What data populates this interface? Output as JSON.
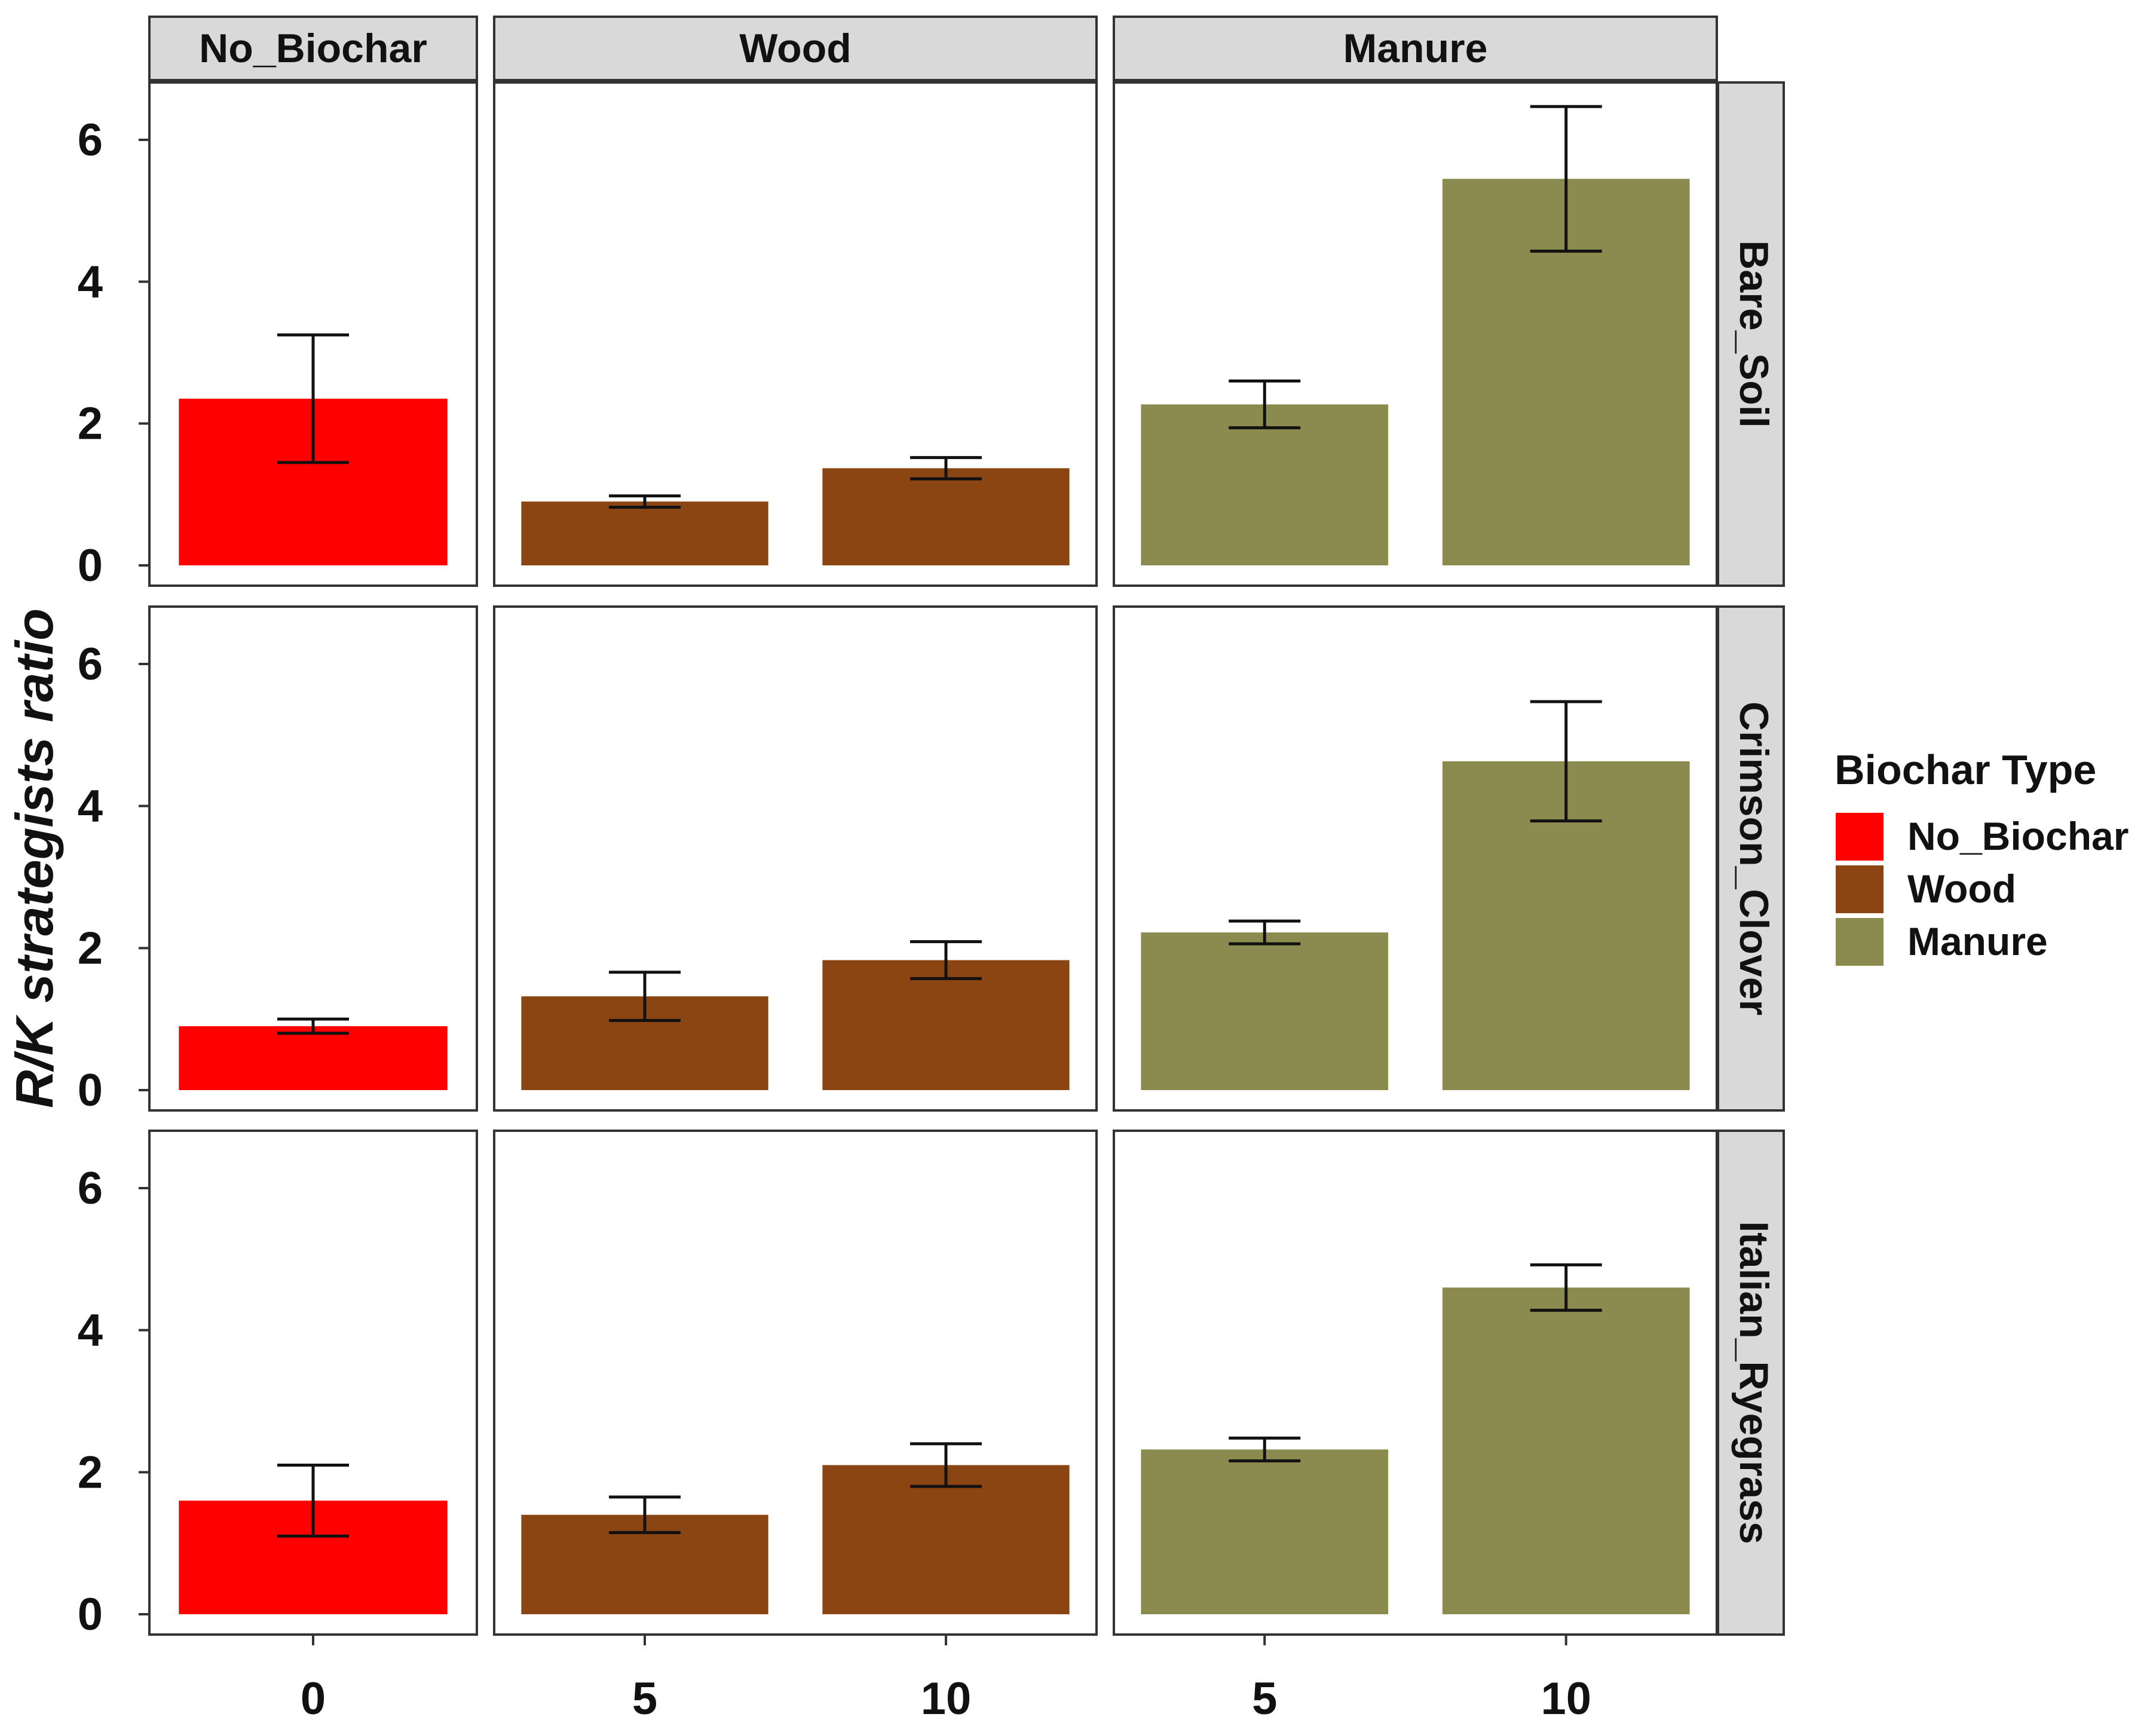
{
  "chart_data": {
    "type": "bar",
    "title": "",
    "ylabel": "R/K strategists ratio",
    "xlabel": "",
    "ylim": [
      0,
      6.6
    ],
    "yticks": [
      0,
      2,
      4,
      6
    ],
    "column_facets": [
      {
        "name": "No_Biochar",
        "categories": [
          "0"
        ]
      },
      {
        "name": "Wood",
        "categories": [
          "5",
          "10"
        ]
      },
      {
        "name": "Manure",
        "categories": [
          "5",
          "10"
        ]
      }
    ],
    "row_facets": [
      "Bare_Soil",
      "Crimson_Clover",
      "Italian_Ryegrass"
    ],
    "legend": {
      "title": "Biochar Type",
      "position": "right",
      "entries": [
        {
          "label": "No_Biochar",
          "color": "#ff0000"
        },
        {
          "label": "Wood",
          "color": "#8b4513"
        },
        {
          "label": "Manure",
          "color": "#8b8b4f"
        }
      ]
    },
    "series": [
      {
        "row": "Bare_Soil",
        "column": "No_Biochar",
        "values": [
          2.35
        ],
        "errors": [
          0.9
        ]
      },
      {
        "row": "Bare_Soil",
        "column": "Wood",
        "values": [
          0.9,
          1.37
        ],
        "errors": [
          0.08,
          0.15
        ]
      },
      {
        "row": "Bare_Soil",
        "column": "Manure",
        "values": [
          2.27,
          5.45
        ],
        "errors": [
          0.33,
          1.02
        ]
      },
      {
        "row": "Crimson_Clover",
        "column": "No_Biochar",
        "values": [
          0.9
        ],
        "errors": [
          0.1
        ]
      },
      {
        "row": "Crimson_Clover",
        "column": "Wood",
        "values": [
          1.32,
          1.83
        ],
        "errors": [
          0.34,
          0.26
        ]
      },
      {
        "row": "Crimson_Clover",
        "column": "Manure",
        "values": [
          2.22,
          4.63
        ],
        "errors": [
          0.16,
          0.84
        ]
      },
      {
        "row": "Italian_Ryegrass",
        "column": "No_Biochar",
        "values": [
          1.6
        ],
        "errors": [
          0.5
        ]
      },
      {
        "row": "Italian_Ryegrass",
        "column": "Wood",
        "values": [
          1.4,
          2.1
        ],
        "errors": [
          0.25,
          0.3
        ]
      },
      {
        "row": "Italian_Ryegrass",
        "column": "Manure",
        "values": [
          2.32,
          4.6
        ],
        "errors": [
          0.16,
          0.32
        ]
      }
    ]
  }
}
